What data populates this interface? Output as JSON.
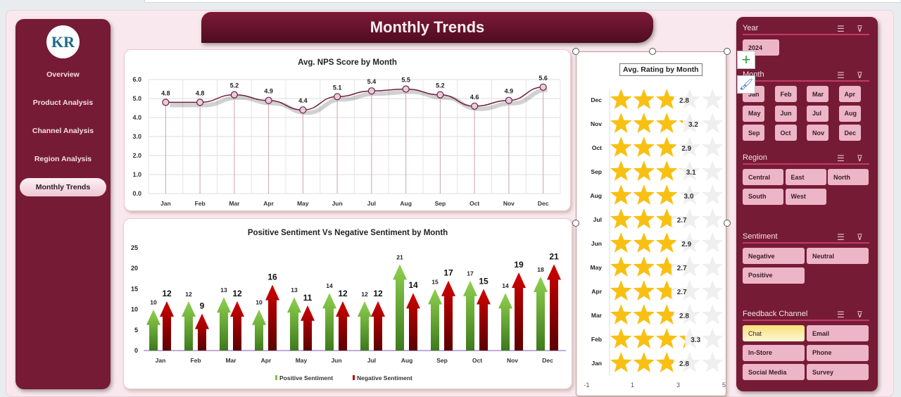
{
  "header": {
    "title": "Monthly Trends"
  },
  "sidebar": {
    "items": [
      {
        "label": "Overview"
      },
      {
        "label": "Product Analysis"
      },
      {
        "label": "Channel Analysis"
      },
      {
        "label": "Region Analysis"
      },
      {
        "label": "Monthly Trends",
        "active": true
      }
    ],
    "logo": "KR"
  },
  "colors": {
    "brand": "#761b36",
    "positive": "#7cc242",
    "negative": "#c00000",
    "star": "#f8c012",
    "line": "#6e1f3c"
  },
  "nps_chart": {
    "chart_data": {
      "type": "line",
      "title": "Avg. NPS Score by Month",
      "categories": [
        "Jan",
        "Feb",
        "Mar",
        "Apr",
        "May",
        "Jun",
        "Jul",
        "Aug",
        "Sep",
        "Oct",
        "Nov",
        "Dec"
      ],
      "values": [
        4.8,
        4.8,
        5.2,
        4.9,
        4.4,
        5.1,
        5.4,
        5.5,
        5.2,
        4.6,
        4.9,
        5.6
      ],
      "ylim": [
        0,
        6
      ],
      "yticks": [
        "0.0",
        "1.0",
        "2.0",
        "3.0",
        "4.0",
        "5.0",
        "6.0"
      ],
      "grid": true
    }
  },
  "sentiment_chart": {
    "chart_data": {
      "type": "bar",
      "title": "Positive Sentiment Vs Negative Sentiment by Month",
      "categories": [
        "Jan",
        "Feb",
        "Mar",
        "Apr",
        "May",
        "Jun",
        "Jul",
        "Aug",
        "Sep",
        "Oct",
        "Nov",
        "Dec"
      ],
      "series": [
        {
          "name": "Positive Sentiment",
          "values": [
            10,
            12,
            13,
            10,
            13,
            14,
            12,
            21,
            15,
            17,
            14,
            18
          ]
        },
        {
          "name": "Negative Sentiment",
          "values": [
            12,
            9,
            12,
            16,
            11,
            12,
            12,
            14,
            17,
            15,
            19,
            21
          ]
        }
      ],
      "ylim": [
        0,
        25
      ],
      "yticks": [
        "0",
        "5",
        "10",
        "15",
        "20",
        "25"
      ],
      "legend": "bottom"
    }
  },
  "rating_chart": {
    "chart_data": {
      "type": "bar",
      "title": "Avg. Rating by Month",
      "categories": [
        "Dec",
        "Nov",
        "Oct",
        "Sep",
        "Aug",
        "Jul",
        "Jun",
        "May",
        "Apr",
        "Mar",
        "Feb",
        "Jan"
      ],
      "values": [
        2.8,
        3.2,
        2.9,
        3.1,
        3.0,
        2.7,
        2.9,
        2.7,
        2.7,
        2.8,
        3.3,
        2.8
      ],
      "xlim": [
        -1,
        5
      ],
      "xticks": [
        "-1",
        "1",
        "3",
        "5"
      ],
      "max_stars": 5
    }
  },
  "filters": {
    "year": {
      "label": "Year",
      "options": [
        "2024"
      ]
    },
    "month": {
      "label": "Month",
      "options": [
        "Jan",
        "Feb",
        "Mar",
        "Apr",
        "May",
        "Jun",
        "Jul",
        "Aug",
        "Sep",
        "Oct",
        "Nov",
        "Dec"
      ]
    },
    "region": {
      "label": "Region",
      "options": [
        "Central",
        "East",
        "North",
        "South",
        "West"
      ]
    },
    "sentiment": {
      "label": "Sentiment",
      "options": [
        "Negative",
        "Neutral",
        "Positive"
      ]
    },
    "channel": {
      "label": "Feedback Channel",
      "options": [
        "Chat",
        "Email",
        "In-Store",
        "Phone",
        "Social Media",
        "Survey"
      ],
      "selected": "Chat"
    }
  }
}
